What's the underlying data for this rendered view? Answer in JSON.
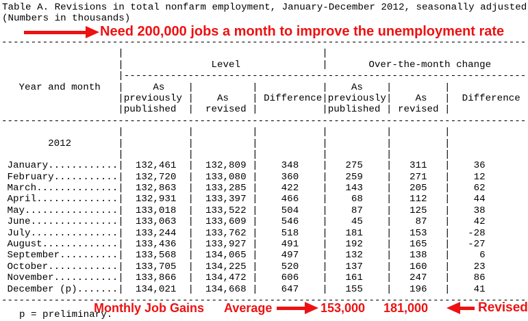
{
  "title": "Table A. Revisions in total nonfarm employment, January-December 2012, seasonally adjusted",
  "subtitle": "(Numbers in thousands)",
  "annotations": {
    "accent_color": "#ee1111",
    "top": {
      "arrow_icon": "red-arrow-right-icon",
      "text": "Need 200,000 jobs a month to improve the unemployment rate"
    },
    "bottom": {
      "gains_label": "Monthly Job Gains",
      "average_label": "Average",
      "arrow_icon": "red-arrow-right-icon",
      "published_average": "153,000",
      "revised_average": "181,000",
      "back_arrow_icon": "red-arrow-left-icon",
      "revised_label": "Revised"
    }
  },
  "table": {
    "row_label_header": "Year and month",
    "groups": [
      {
        "label": "Level"
      },
      {
        "label": "Over-the-month change"
      }
    ],
    "column_headers": [
      [
        "As",
        "previously",
        "published"
      ],
      [
        "",
        "As",
        "revised"
      ],
      [
        "",
        "Difference",
        ""
      ],
      [
        "As",
        "previously",
        "published"
      ],
      [
        "",
        "As",
        "revised"
      ],
      [
        "",
        "Difference",
        ""
      ]
    ],
    "year_label": "2012",
    "rows": [
      {
        "label": "January",
        "values": [
          "132,461",
          "132,809",
          "348",
          "275",
          "311",
          "36"
        ]
      },
      {
        "label": "February",
        "values": [
          "132,720",
          "133,080",
          "360",
          "259",
          "271",
          "12"
        ]
      },
      {
        "label": "March",
        "values": [
          "132,863",
          "133,285",
          "422",
          "143",
          "205",
          "62"
        ]
      },
      {
        "label": "April",
        "values": [
          "132,931",
          "133,397",
          "466",
          "68",
          "112",
          "44"
        ]
      },
      {
        "label": "May",
        "values": [
          "133,018",
          "133,522",
          "504",
          "87",
          "125",
          "38"
        ]
      },
      {
        "label": "June",
        "values": [
          "133,063",
          "133,609",
          "546",
          "45",
          "87",
          "42"
        ]
      },
      {
        "label": "July",
        "values": [
          "133,244",
          "133,762",
          "518",
          "181",
          "153",
          "-28"
        ]
      },
      {
        "label": "August",
        "values": [
          "133,436",
          "133,927",
          "491",
          "192",
          "165",
          "-27"
        ]
      },
      {
        "label": "September",
        "values": [
          "133,568",
          "134,065",
          "497",
          "132",
          "138",
          "6"
        ]
      },
      {
        "label": "October",
        "values": [
          "133,705",
          "134,225",
          "520",
          "137",
          "160",
          "23"
        ]
      },
      {
        "label": "November",
        "values": [
          "133,866",
          "134,472",
          "606",
          "161",
          "247",
          "86"
        ]
      },
      {
        "label": "December (p)",
        "values": [
          "134,021",
          "134,668",
          "647",
          "155",
          "196",
          "41"
        ]
      }
    ],
    "footnote": "p = preliminary."
  }
}
